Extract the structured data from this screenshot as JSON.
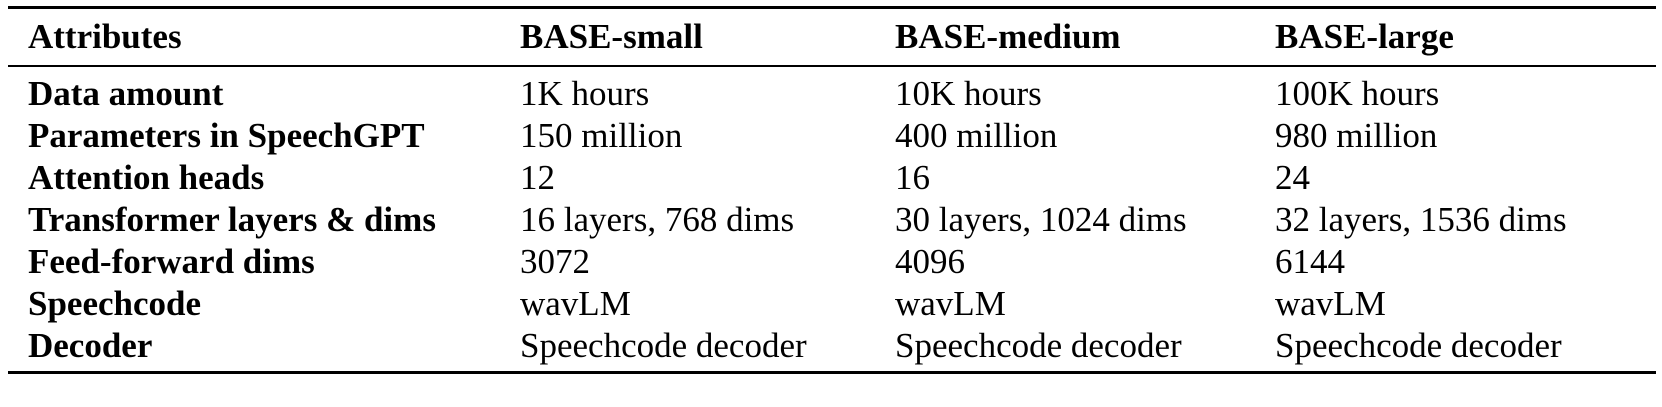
{
  "table": {
    "headers": [
      "Attributes",
      "BASE-small",
      "BASE-medium",
      "BASE-large"
    ],
    "rows": [
      [
        "Data amount",
        "1K hours",
        "10K hours",
        "100K hours"
      ],
      [
        "Parameters in SpeechGPT",
        "150 million",
        "400 million",
        "980 million"
      ],
      [
        "Attention heads",
        "12",
        "16",
        "24"
      ],
      [
        "Transformer layers & dims",
        "16 layers, 768 dims",
        "30 layers, 1024 dims",
        "32 layers, 1536 dims"
      ],
      [
        "Feed-forward dims",
        "3072",
        "4096",
        "6144"
      ],
      [
        "Speechcode",
        "wavLM",
        "wavLM",
        "wavLM"
      ],
      [
        "Decoder",
        "Speechcode decoder",
        "Speechcode decoder",
        "Speechcode decoder"
      ]
    ]
  }
}
